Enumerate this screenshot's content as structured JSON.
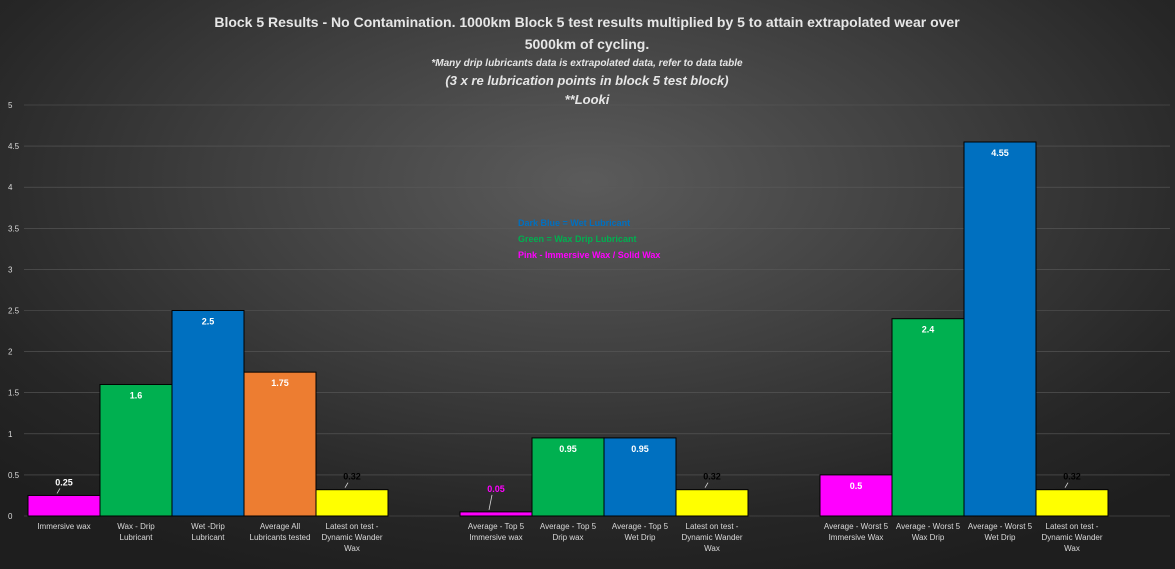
{
  "chart_data": {
    "type": "bar",
    "title": "Block 5 Results - No Contamination. 1000km Block 5 test results multiplied by 5 to attain extrapolated wear over",
    "title_line2": "5000km of cycling.",
    "subtitle_1": "*Many drip lubricants data is extrapolated data, refer to data table",
    "subtitle_2": "(3 x re lubrication points in block 5 test block)",
    "subtitle_3": "**Looki",
    "ylim": [
      0,
      5
    ],
    "yticks": [
      "0",
      "0.5",
      "1",
      "1.5",
      "2",
      "2.5",
      "3",
      "3.5",
      "4",
      "4.5",
      "5"
    ],
    "grid": true,
    "legend_position": "center",
    "legend": [
      {
        "text": "Dark Blue = Wet Lubricant",
        "color": "#0070c0"
      },
      {
        "text": "Green = Wax Drip Lubricant",
        "color": "#00b050"
      },
      {
        "text": "Pink - Immersive Wax / Solid Wax",
        "color": "#ff00ff"
      }
    ],
    "bars": [
      {
        "label": [
          "Immersive wax"
        ],
        "value": 0.25,
        "display": "0.25",
        "color": "#ff00ff",
        "label_color": "#ffffff",
        "slot": 0
      },
      {
        "label": [
          "Wax - Drip",
          "Lubricant"
        ],
        "value": 1.6,
        "display": "1.6",
        "color": "#00b050",
        "label_color": "#ffffff",
        "slot": 1
      },
      {
        "label": [
          "Wet -Drip",
          "Lubricant"
        ],
        "value": 2.5,
        "display": "2.5",
        "color": "#0070c0",
        "label_color": "#ffffff",
        "slot": 2
      },
      {
        "label": [
          "Average All",
          "Lubricants tested"
        ],
        "value": 1.75,
        "display": "1.75",
        "color": "#ed7d31",
        "label_color": "#ffffff",
        "slot": 3
      },
      {
        "label": [
          "Latest on test -",
          "Dynamic Wander",
          "Wax"
        ],
        "value": 0.32,
        "display": "0.32",
        "color": "#ffff00",
        "label_color": "#000000",
        "slot": 4
      },
      {
        "label": [
          "Average - Top 5",
          "Immersive wax"
        ],
        "value": 0.05,
        "display": "0.05",
        "color": "#ff00ff",
        "label_color": "#ff00ff",
        "slot": 6
      },
      {
        "label": [
          "Average - Top 5",
          "Drip wax"
        ],
        "value": 0.95,
        "display": "0.95",
        "color": "#00b050",
        "label_color": "#ffffff",
        "slot": 7
      },
      {
        "label": [
          "Average - Top 5",
          "Wet Drip"
        ],
        "value": 0.95,
        "display": "0.95",
        "color": "#0070c0",
        "label_color": "#ffffff",
        "slot": 8
      },
      {
        "label": [
          "Latest on test -",
          "Dynamic Wander",
          "Wax"
        ],
        "value": 0.32,
        "display": "0.32",
        "color": "#ffff00",
        "label_color": "#000000",
        "slot": 9
      },
      {
        "label": [
          "Average - Worst 5",
          "Immersive Wax"
        ],
        "value": 0.5,
        "display": "0.5",
        "color": "#ff00ff",
        "label_color": "#ffffff",
        "slot": 11
      },
      {
        "label": [
          "Average - Worst 5",
          "Wax Drip"
        ],
        "value": 2.4,
        "display": "2.4",
        "color": "#00b050",
        "label_color": "#ffffff",
        "slot": 12
      },
      {
        "label": [
          "Average - Worst 5",
          "Wet Drip"
        ],
        "value": 4.55,
        "display": "4.55",
        "color": "#0070c0",
        "label_color": "#ffffff",
        "slot": 13
      },
      {
        "label": [
          "Latest on test -",
          "Dynamic Wander",
          "Wax"
        ],
        "value": 0.32,
        "display": "0.32",
        "color": "#ffff00",
        "label_color": "#000000",
        "slot": 14
      }
    ]
  }
}
